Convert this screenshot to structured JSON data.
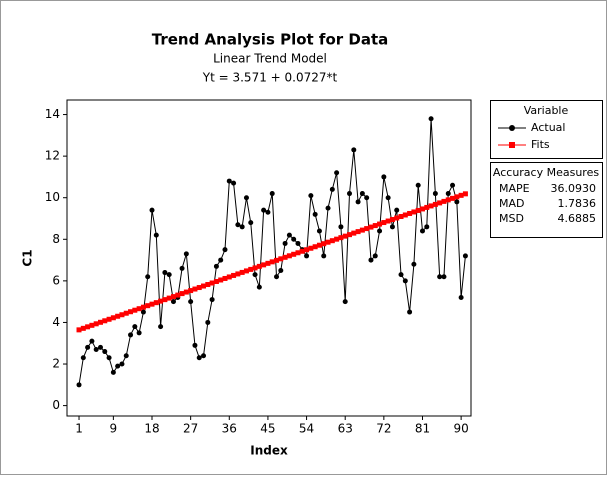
{
  "chart_data": {
    "type": "line",
    "title": "Trend Analysis Plot for Data",
    "subtitle": "Linear Trend Model",
    "equation": "Yt = 3.571 + 0.0727*t",
    "x_label": "Index",
    "y_label": "C1",
    "x": [
      1,
      2,
      3,
      4,
      5,
      6,
      7,
      8,
      9,
      10,
      11,
      12,
      13,
      14,
      15,
      16,
      17,
      18,
      19,
      20,
      21,
      22,
      23,
      24,
      25,
      26,
      27,
      28,
      29,
      30,
      31,
      32,
      33,
      34,
      35,
      36,
      37,
      38,
      39,
      40,
      41,
      42,
      43,
      44,
      45,
      46,
      47,
      48,
      49,
      50,
      51,
      52,
      53,
      54,
      55,
      56,
      57,
      58,
      59,
      60,
      61,
      62,
      63,
      64,
      65,
      66,
      67,
      68,
      69,
      70,
      71,
      72,
      73,
      74,
      75,
      76,
      77,
      78,
      79,
      80,
      81,
      82,
      83,
      84,
      85,
      86,
      87,
      88,
      89,
      90,
      91
    ],
    "series": [
      {
        "name": "Actual",
        "color": "#000000",
        "marker": "circle",
        "values": [
          1.0,
          2.3,
          2.8,
          3.1,
          2.7,
          2.8,
          2.6,
          2.3,
          1.6,
          1.9,
          2.0,
          2.4,
          3.4,
          3.8,
          3.5,
          4.5,
          6.2,
          9.4,
          8.2,
          3.8,
          6.4,
          6.3,
          5.0,
          5.2,
          6.6,
          7.3,
          5.0,
          2.9,
          2.3,
          2.4,
          4.0,
          5.1,
          6.7,
          7.0,
          7.5,
          10.8,
          10.7,
          8.7,
          8.6,
          10.0,
          8.8,
          6.3,
          5.7,
          9.4,
          9.3,
          10.2,
          6.2,
          6.5,
          7.8,
          8.2,
          8.0,
          7.8,
          7.5,
          7.2,
          10.1,
          9.2,
          8.4,
          7.2,
          9.5,
          10.4,
          11.2,
          8.6,
          5.0,
          10.2,
          12.3,
          9.8,
          10.2,
          10.0,
          7.0,
          7.2,
          8.4,
          11.0,
          10.0,
          8.6,
          9.4,
          6.3,
          6.0,
          4.5,
          6.8,
          10.6,
          8.4,
          8.6,
          13.8,
          10.2,
          6.2,
          6.2,
          10.2,
          10.6,
          9.8,
          5.2,
          7.2
        ]
      },
      {
        "name": "Fits",
        "color": "#ff0000",
        "marker": "square",
        "values": [
          3.6437,
          3.7164,
          3.7891,
          3.8618,
          3.9345,
          4.0072,
          4.0799,
          4.1526,
          4.2253,
          4.298,
          4.3707,
          4.4434,
          4.5161,
          4.5888,
          4.6615,
          4.7342,
          4.8069,
          4.8796,
          4.9523,
          5.025,
          5.0977,
          5.1704,
          5.2431,
          5.3158,
          5.3885,
          5.4612,
          5.5339,
          5.6066,
          5.6793,
          5.752,
          5.8247,
          5.8974,
          5.9701,
          6.0428,
          6.1155,
          6.1882,
          6.2609,
          6.3336,
          6.4063,
          6.479,
          6.5517,
          6.6244,
          6.6971,
          6.7698,
          6.8425,
          6.9152,
          6.9879,
          7.0606,
          7.1333,
          7.206,
          7.2787,
          7.3514,
          7.4241,
          7.4968,
          7.5695,
          7.6422,
          7.7149,
          7.7876,
          7.8603,
          7.933,
          8.0057,
          8.0784,
          8.1511,
          8.2238,
          8.2965,
          8.3692,
          8.4419,
          8.5146,
          8.5873,
          8.66,
          8.7327,
          8.8054,
          8.8781,
          8.9508,
          9.0235,
          9.0962,
          9.1689,
          9.2416,
          9.3143,
          9.387,
          9.4597,
          9.5324,
          9.6051,
          9.6778,
          9.7505,
          9.8232,
          9.8959,
          9.9686,
          10.0413,
          10.114,
          10.1867
        ]
      }
    ],
    "xlim": [
      -1.8,
      92.3
    ],
    "xticks": [
      1,
      9,
      18,
      27,
      36,
      45,
      54,
      63,
      72,
      81,
      90
    ],
    "ylim": [
      -0.5,
      14.7
    ],
    "yticks": [
      0,
      2,
      4,
      6,
      8,
      10,
      12,
      14
    ],
    "legend_title": "Variable",
    "accuracy_measures": {
      "title": "Accuracy Measures",
      "rows": [
        [
          "MAPE",
          "36.0930"
        ],
        [
          "MAD",
          "1.7836"
        ],
        [
          "MSD",
          "4.6885"
        ]
      ]
    }
  }
}
